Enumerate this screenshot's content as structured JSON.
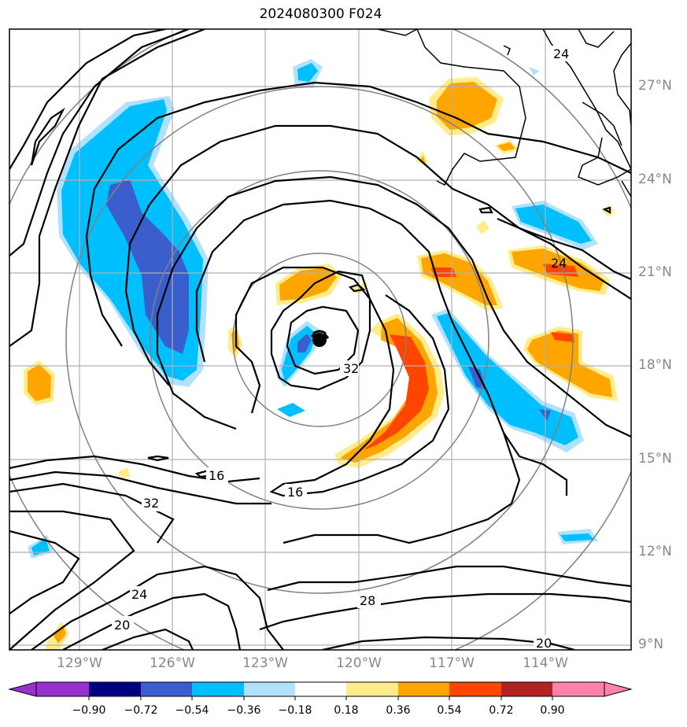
{
  "title": "2024080300 F024",
  "lat_labels": [
    "27°N",
    "24°N",
    "21°N",
    "18°N",
    "15°N",
    "12°N",
    "9°N"
  ],
  "lon_labels": [
    "129°W",
    "126°W",
    "123°W",
    "120°W",
    "117°W",
    "114°W"
  ],
  "colorbar": {
    "ticks": [
      "−0.90",
      "−0.72",
      "−0.54",
      "−0.36",
      "−0.18",
      "0.18",
      "0.36",
      "0.54",
      "0.72",
      "0.90"
    ],
    "colors": [
      "#9932cc",
      "#000080",
      "#3a5fcd",
      "#00bfff",
      "#b0e2ff",
      "#ffffff",
      "#ffec8b",
      "#ffa500",
      "#ff4500",
      "#b22222",
      "#ff82ab"
    ]
  },
  "contour_labels": [
    "24",
    "32",
    "16",
    "16",
    "32",
    "24",
    "20",
    "28",
    "20"
  ],
  "storm_center_symbol": "hurricane-symbol"
}
